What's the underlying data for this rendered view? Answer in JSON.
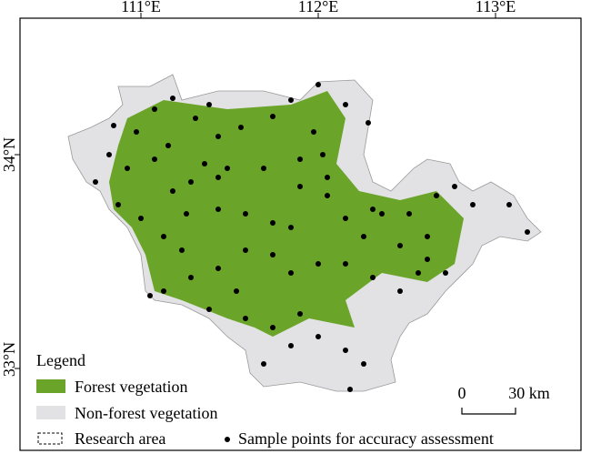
{
  "map": {
    "longitude_labels": [
      "111°E",
      "112°E",
      "113°E"
    ],
    "latitude_labels": [
      "34°N",
      "33°N"
    ],
    "legend": {
      "title": "Legend",
      "items": [
        "Forest vegetation",
        "Non-forest vegetation",
        "Research area",
        "Sample points for accuracy assessment"
      ]
    },
    "scale_bar": {
      "start": "0",
      "end": "30 km"
    }
  }
}
